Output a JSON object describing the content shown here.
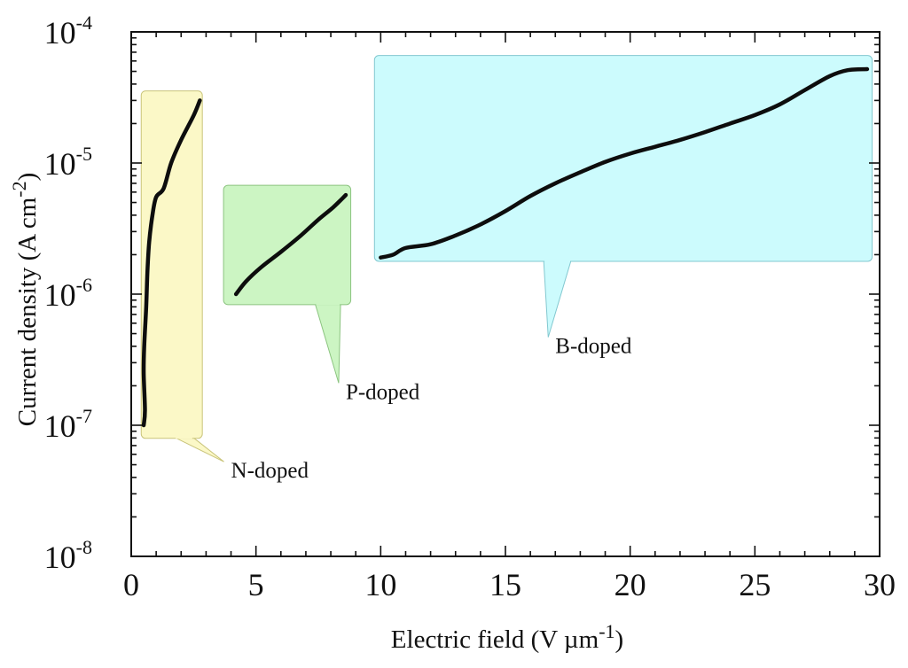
{
  "chart_data": {
    "type": "line",
    "title": "",
    "xlabel": {
      "main": "Electric field (V µm",
      "exp": "-1",
      "tail": ")"
    },
    "ylabel": {
      "main": "Current density (A cm",
      "exp": "-2",
      "tail": ")"
    },
    "xlim": [
      0,
      30
    ],
    "ylim_log10": [
      -8,
      -4
    ],
    "y_scale": "log",
    "grid": false,
    "x_ticks": [
      {
        "value": 0,
        "label": "0"
      },
      {
        "value": 5,
        "label": "5"
      },
      {
        "value": 10,
        "label": "10"
      },
      {
        "value": 15,
        "label": "15"
      },
      {
        "value": 20,
        "label": "20"
      },
      {
        "value": 25,
        "label": "25"
      },
      {
        "value": 30,
        "label": "30"
      }
    ],
    "y_ticks": [
      {
        "log": -8,
        "base": "10",
        "exp": "-8"
      },
      {
        "log": -7,
        "base": "10",
        "exp": "-7"
      },
      {
        "log": -6,
        "base": "10",
        "exp": "-6"
      },
      {
        "log": -5,
        "base": "10",
        "exp": "-5"
      },
      {
        "log": -4,
        "base": "10",
        "exp": "-4"
      }
    ],
    "series": [
      {
        "name": "N-doped",
        "label": "N-doped",
        "box_color": "#fbf8c7",
        "box_stroke": "#c9c47a",
        "box_x": [
          0.4,
          2.85
        ],
        "box_log": [
          -7.1,
          -4.45
        ],
        "label_at": {
          "x": 4.0,
          "log": -7.4
        },
        "points": [
          [
            0.5,
            1e-07
          ],
          [
            0.55,
            1.3e-07
          ],
          [
            0.5,
            2.5e-07
          ],
          [
            0.52,
            4e-07
          ],
          [
            0.6,
            8e-07
          ],
          [
            0.65,
            1.5e-06
          ],
          [
            0.72,
            2.5e-06
          ],
          [
            0.85,
            4e-06
          ],
          [
            1.0,
            5.5e-06
          ],
          [
            1.3,
            6.4e-06
          ],
          [
            1.6,
            1e-05
          ],
          [
            2.0,
            1.5e-05
          ],
          [
            2.5,
            2.3e-05
          ],
          [
            2.75,
            3e-05
          ]
        ]
      },
      {
        "name": "P-doped",
        "label": "P-doped",
        "box_color": "#ccf5c3",
        "box_stroke": "#8cc480",
        "box_x": [
          3.7,
          8.8
        ],
        "box_log": [
          -6.08,
          -5.17
        ],
        "label_at": {
          "x": 8.6,
          "log": -6.8
        },
        "points": [
          [
            4.2,
            1e-06
          ],
          [
            4.6,
            1.25e-06
          ],
          [
            5.2,
            1.6e-06
          ],
          [
            6.0,
            2.1e-06
          ],
          [
            6.8,
            2.8e-06
          ],
          [
            7.5,
            3.7e-06
          ],
          [
            8.1,
            4.6e-06
          ],
          [
            8.6,
            5.7e-06
          ]
        ]
      },
      {
        "name": "B-doped",
        "label": "B-doped",
        "box_color": "#ccfbfd",
        "box_stroke": "#82c8d0",
        "box_x": [
          9.75,
          29.7
        ],
        "box_log": [
          -5.75,
          -4.18
        ],
        "label_at": {
          "x": 17.0,
          "log": -6.45
        },
        "points": [
          [
            10.0,
            1.9e-06
          ],
          [
            10.5,
            2e-06
          ],
          [
            11.0,
            2.25e-06
          ],
          [
            12.0,
            2.4e-06
          ],
          [
            13.0,
            2.8e-06
          ],
          [
            14.0,
            3.4e-06
          ],
          [
            15.0,
            4.3e-06
          ],
          [
            16.0,
            5.6e-06
          ],
          [
            17.0,
            7e-06
          ],
          [
            18.0,
            8.5e-06
          ],
          [
            19.0,
            1.02e-05
          ],
          [
            20.0,
            1.18e-05
          ],
          [
            21.0,
            1.33e-05
          ],
          [
            22.0,
            1.5e-05
          ],
          [
            23.0,
            1.72e-05
          ],
          [
            24.0,
            2e-05
          ],
          [
            25.0,
            2.32e-05
          ],
          [
            26.0,
            2.8e-05
          ],
          [
            27.0,
            3.6e-05
          ],
          [
            28.0,
            4.6e-05
          ],
          [
            28.7,
            5.1e-05
          ],
          [
            29.5,
            5.2e-05
          ]
        ]
      }
    ]
  }
}
